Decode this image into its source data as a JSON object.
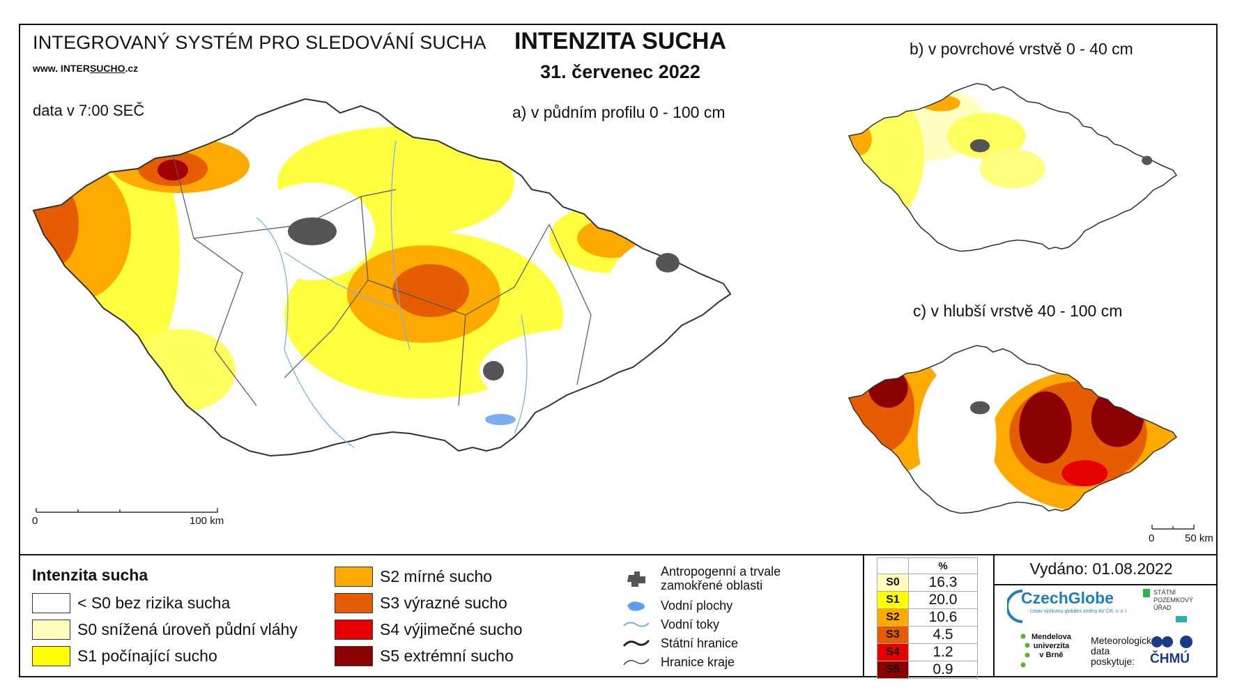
{
  "header": {
    "system_title": "INTEGROVANÝ SYSTÉM PRO SLEDOVÁNÍ SUCHA",
    "website_prefix": "www. INTER",
    "website_mid": "SUCHO",
    "website_suffix": ".cz",
    "data_time": "data v 7:00 SEČ",
    "title": "INTENZITA SUCHA",
    "date": "31. červenec 2022"
  },
  "maps": {
    "a_label": "a) v půdním profilu 0 - 100 cm",
    "b_label": "b) v povrchové vrstvě 0 - 40 cm",
    "c_label": "c) v hlubší vrstvě 40 - 100 cm",
    "scale_main": {
      "start": "0",
      "end": "100 km"
    },
    "scale_small": {
      "start": "0",
      "end": "50 km"
    }
  },
  "legend": {
    "title": "Intenzita sucha",
    "classes": [
      {
        "label": "< S0 bez rizika sucha",
        "color": "#ffffff"
      },
      {
        "label": "S0 snížená úroveň půdní vláhy",
        "color": "#ffffc0"
      },
      {
        "label": "S1 počínající sucho",
        "color": "#ffff00"
      },
      {
        "label": "S2 mírné sucho",
        "color": "#ffaa00"
      },
      {
        "label": "S3 výrazné sucho",
        "color": "#e65c00"
      },
      {
        "label": "S4 výjimečné sucho",
        "color": "#e60000"
      },
      {
        "label": "S5 extrémní sucho",
        "color": "#8b0000"
      }
    ],
    "symbols": [
      {
        "label_line1": "Antropogenní a trvale",
        "label_line2": "zamokřené oblasti",
        "icon": "urban-area-icon"
      },
      {
        "label_line1": "Vodní plochy",
        "icon": "water-body-icon"
      },
      {
        "label_line1": "Vodní toky",
        "icon": "river-icon"
      },
      {
        "label_line1": "Státní hranice",
        "icon": "state-border-icon"
      },
      {
        "label_line1": "Hranice kraje",
        "icon": "region-border-icon"
      }
    ]
  },
  "percent_table": {
    "header": "%",
    "rows": [
      {
        "label": "S0",
        "value": "16.3",
        "color": "#ffffc0",
        "text_color": "#000"
      },
      {
        "label": "S1",
        "value": "20.0",
        "color": "#ffff00",
        "text_color": "#000"
      },
      {
        "label": "S2",
        "value": "10.6",
        "color": "#ffaa00",
        "text_color": "#000"
      },
      {
        "label": "S3",
        "value": "4.5",
        "color": "#e65c00",
        "text_color": "#000"
      },
      {
        "label": "S4",
        "value": "1.2",
        "color": "#e60000",
        "text_color": "#000"
      },
      {
        "label": "S5",
        "value": "0.9",
        "color": "#8b0000",
        "text_color": "#000"
      }
    ]
  },
  "footer": {
    "issued": "Vydáno: 01.08.2022",
    "logo_czechglobe": "CzechGlobe",
    "logo_czechglobe_sub": "Ústav výzkumu globální změny AV ČR, v. v. i.",
    "logo_spu_line1": "STÁTNÍ",
    "logo_spu_line2": "POZEMKOVÝ",
    "logo_spu_line3": "ÚŘAD",
    "logo_mendel_line1": "Mendelova",
    "logo_mendel_line2": "univerzita",
    "logo_mendel_line3": "v Brně",
    "meteo_line1": "Meteorologická",
    "meteo_line2": "data",
    "meteo_line3": "poskytuje:",
    "logo_chmu": "ČHMÚ"
  }
}
